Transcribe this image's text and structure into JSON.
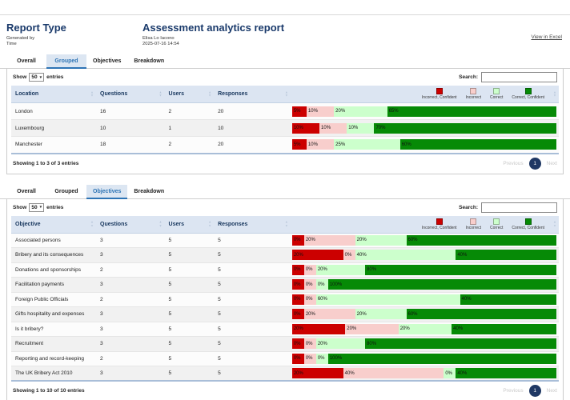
{
  "report": {
    "view_in_excel": "View in Excel",
    "report_type_title": "Report Type",
    "generated_by_label": "Generated by",
    "time_label": "Time",
    "main_title": "Assessment analytics report",
    "generated_by_value": "Elisa Lo Iacono",
    "time_value": "2025-07-16 14:54"
  },
  "tabs": [
    "Overall",
    "Grouped",
    "Objectives",
    "Breakdown"
  ],
  "controls": {
    "show_label": "Show",
    "page_size": "50",
    "entries_label": "entries",
    "search_label": "Search:"
  },
  "legend": [
    {
      "label": "Incorrect, Confident",
      "color": "#cc0000"
    },
    {
      "label": "Incorrect",
      "color": "#f8cecc"
    },
    {
      "label": "Correct",
      "color": "#ccffcc"
    },
    {
      "label": "Correct, Confident",
      "color": "#068a06"
    }
  ],
  "pagination": {
    "previous": "Previous",
    "page": "1",
    "next": "Next"
  },
  "sections": [
    {
      "active_tab": "Grouped",
      "columns": [
        "Location",
        "Questions",
        "Users",
        "Responses"
      ],
      "rows": [
        {
          "name": "London",
          "questions": "16",
          "users": "2",
          "responses": "20",
          "bar": [
            5,
            10,
            20,
            65
          ]
        },
        {
          "name": "Luxembourg",
          "questions": "10",
          "users": "1",
          "responses": "10",
          "bar": [
            10,
            10,
            10,
            70
          ]
        },
        {
          "name": "Manchester",
          "questions": "18",
          "users": "2",
          "responses": "20",
          "bar": [
            5,
            10,
            25,
            60
          ]
        }
      ],
      "footer": "Showing 1 to 3 of 3 entries"
    },
    {
      "active_tab": "Objectives",
      "columns": [
        "Objective",
        "Questions",
        "Users",
        "Responses"
      ],
      "rows": [
        {
          "name": "Associated persons",
          "questions": "3",
          "users": "5",
          "responses": "5",
          "bar": [
            0,
            20,
            20,
            60
          ]
        },
        {
          "name": "Bribery and its consequences",
          "questions": "3",
          "users": "5",
          "responses": "5",
          "bar": [
            20,
            0,
            40,
            40
          ]
        },
        {
          "name": "Donations and sponsorships",
          "questions": "2",
          "users": "5",
          "responses": "5",
          "bar": [
            0,
            0,
            20,
            80
          ]
        },
        {
          "name": "Facilitation payments",
          "questions": "3",
          "users": "5",
          "responses": "5",
          "bar": [
            0,
            0,
            0,
            100
          ]
        },
        {
          "name": "Foreign Public Officials",
          "questions": "2",
          "users": "5",
          "responses": "5",
          "bar": [
            0,
            0,
            60,
            40
          ]
        },
        {
          "name": "Gifts hospitality and expenses",
          "questions": "3",
          "users": "5",
          "responses": "5",
          "bar": [
            0,
            20,
            20,
            60
          ]
        },
        {
          "name": "Is it bribery?",
          "questions": "3",
          "users": "5",
          "responses": "5",
          "bar": [
            20,
            20,
            20,
            40
          ]
        },
        {
          "name": "Recruitment",
          "questions": "3",
          "users": "5",
          "responses": "5",
          "bar": [
            0,
            0,
            20,
            80
          ]
        },
        {
          "name": "Reporting and record-keeping",
          "questions": "2",
          "users": "5",
          "responses": "5",
          "bar": [
            0,
            0,
            0,
            100
          ]
        },
        {
          "name": "The UK Bribery Act 2010",
          "questions": "3",
          "users": "5",
          "responses": "5",
          "bar": [
            20,
            40,
            0,
            40
          ]
        }
      ],
      "footer": "Showing 1 to 10 of 10 entries"
    }
  ]
}
